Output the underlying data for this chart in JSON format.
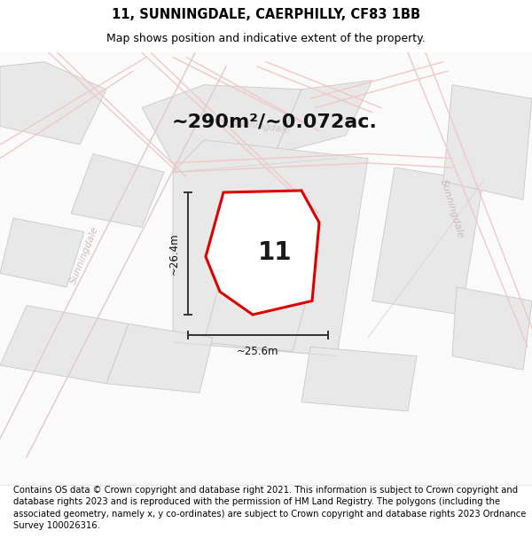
{
  "title": "11, SUNNINGDALE, CAERPHILLY, CF83 1BB",
  "subtitle": "Map shows position and indicative extent of the property.",
  "area_label": "~290m²/~0.072ac.",
  "number_label": "11",
  "width_label": "~25.6m",
  "height_label": "~26.4m",
  "footer": "Contains OS data © Crown copyright and database right 2021. This information is subject to Crown copyright and database rights 2023 and is reproduced with the permission of HM Land Registry. The polygons (including the associated geometry, namely x, y co-ordinates) are subject to Crown copyright and database rights 2023 Ordnance Survey 100026316.",
  "bg_color": "#ffffff",
  "map_bg": "#fafafa",
  "road_pink": "#f0c8c8",
  "road_gray": "#d0d0d0",
  "block_fill": "#e8e8e8",
  "block_edge": "#c8c8c8",
  "plot_outline_color": "#dd0000",
  "plot_fill_color": "#ffffff",
  "title_fontsize": 10.5,
  "subtitle_fontsize": 9,
  "area_fontsize": 16,
  "number_fontsize": 20,
  "footer_fontsize": 7.2,
  "sunningdale_color": "#c8b0b0",
  "dim_line_color": "#333333"
}
